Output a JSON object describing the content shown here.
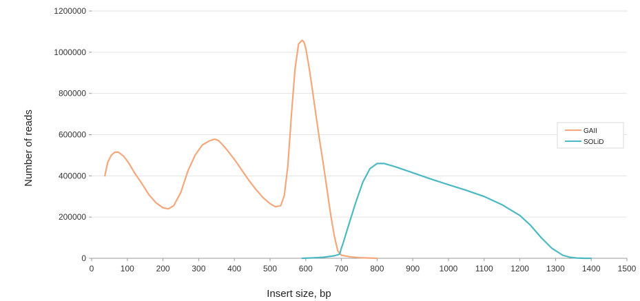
{
  "chart_data": {
    "type": "line",
    "xlabel": "Insert size, bp",
    "ylabel": "Number of reads",
    "xlim": [
      0,
      1500
    ],
    "ylim": [
      0,
      1200000
    ],
    "x_ticks": [
      "0",
      "100",
      "200",
      "300",
      "400",
      "500",
      "600",
      "700",
      "800",
      "900",
      "1000",
      "1100",
      "1200",
      "1300",
      "1400",
      "1500"
    ],
    "y_ticks": [
      "0",
      "200000",
      "400000",
      "600000",
      "800000",
      "1000000",
      "1200000"
    ],
    "grid": "horizontal",
    "legend_position": "right",
    "series": [
      {
        "name": "GAII",
        "color": "#f4a77a",
        "x": [
          37,
          45,
          55,
          65,
          75,
          90,
          105,
          120,
          140,
          160,
          180,
          200,
          215,
          230,
          250,
          270,
          290,
          310,
          330,
          345,
          355,
          365,
          380,
          400,
          420,
          440,
          460,
          480,
          500,
          515,
          530,
          540,
          550,
          560,
          570,
          580,
          590,
          595,
          600,
          610,
          620,
          630,
          640,
          650,
          660,
          670,
          680,
          690,
          700,
          720,
          750,
          800
        ],
        "y": [
          400000,
          465000,
          500000,
          515000,
          515000,
          495000,
          460000,
          415000,
          365000,
          310000,
          270000,
          245000,
          240000,
          255000,
          320000,
          425000,
          500000,
          550000,
          570000,
          578000,
          572000,
          555000,
          525000,
          480000,
          430000,
          380000,
          335000,
          295000,
          265000,
          250000,
          255000,
          305000,
          450000,
          700000,
          920000,
          1040000,
          1058000,
          1050000,
          1020000,
          920000,
          800000,
          680000,
          560000,
          450000,
          330000,
          210000,
          110000,
          35000,
          15000,
          8000,
          3000,
          0
        ]
      },
      {
        "name": "SOLiD",
        "color": "#4bb8c2",
        "x": [
          590,
          620,
          650,
          680,
          695,
          700,
          705,
          720,
          740,
          760,
          780,
          800,
          820,
          850,
          900,
          950,
          1000,
          1050,
          1100,
          1150,
          1200,
          1230,
          1260,
          1290,
          1320,
          1340,
          1360,
          1380,
          1400
        ],
        "y": [
          0,
          2000,
          5000,
          12000,
          20000,
          50000,
          75000,
          160000,
          270000,
          370000,
          435000,
          460000,
          460000,
          445000,
          415000,
          385000,
          357000,
          330000,
          300000,
          260000,
          208000,
          160000,
          100000,
          48000,
          15000,
          5000,
          1500,
          0,
          0
        ]
      }
    ]
  }
}
